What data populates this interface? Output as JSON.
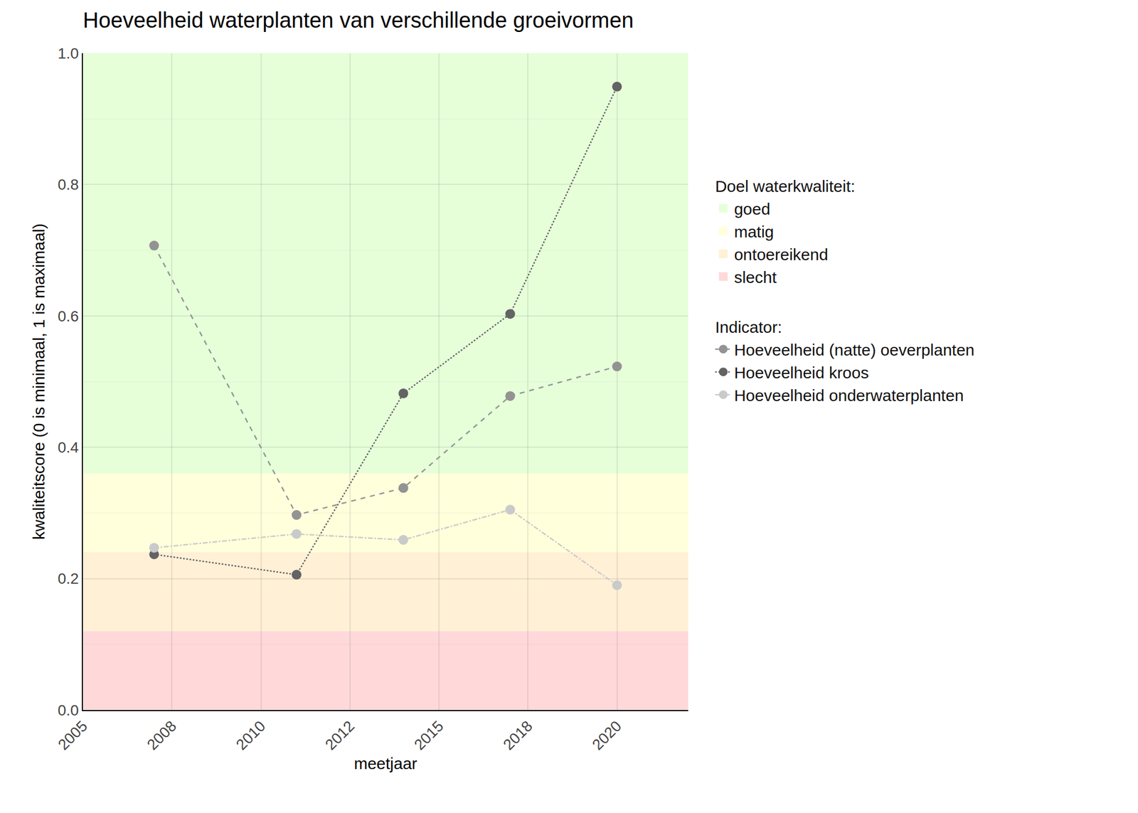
{
  "chart_data": {
    "type": "line",
    "title": "Hoeveelheid waterplanten van verschillende groeivormen",
    "x_label": "meetjaar",
    "y_label": "kwaliteitscore (0 is minimaal, 1 is maximaal)",
    "x": [
      2007,
      2011,
      2014,
      2017,
      2020
    ],
    "xlim": [
      2005,
      2022
    ],
    "xticks": [
      2005,
      {
        "value": 2007.5,
        "label": "2008"
      },
      2010,
      {
        "value": 2012.5,
        "label": "2012"
      },
      2015,
      {
        "value": 2017.5,
        "label": "2018"
      },
      2020
    ],
    "ylim": [
      0,
      1
    ],
    "yticks": [
      {
        "value": 0,
        "label": "0.0"
      },
      0.2,
      0.4,
      0.6,
      0.8,
      {
        "value": 1,
        "label": "1.0"
      }
    ],
    "grid": true,
    "legend": "right",
    "bands_title": "Doel waterkwaliteit:",
    "bands": [
      {
        "name": "goed",
        "from": 0.36,
        "to": 1.0,
        "color": "#e6ffd9"
      },
      {
        "name": "matig",
        "from": 0.24,
        "to": 0.36,
        "color": "#ffffdc"
      },
      {
        "name": "ontoereikend",
        "from": 0.12,
        "to": 0.24,
        "color": "#fff0d6"
      },
      {
        "name": "slecht",
        "from": 0.0,
        "to": 0.12,
        "color": "#ffd9d9"
      }
    ],
    "series_title": "Indicator:",
    "series": [
      {
        "name": "Hoeveelheid (natte) oeverplanten",
        "color": "#939393",
        "line_style": "dash",
        "marker": "circle",
        "values": [
          0.707,
          0.297,
          0.338,
          0.478,
          0.523
        ]
      },
      {
        "name": "Hoeveelheid kroos",
        "color": "#636363",
        "line_style": "dot",
        "marker": "circle",
        "values": [
          0.237,
          0.206,
          0.482,
          0.603,
          0.949
        ]
      },
      {
        "name": "Hoeveelheid onderwaterplanten",
        "color": "#cacaca",
        "line_style": "dashdot",
        "marker": "circle",
        "values": [
          0.247,
          0.268,
          0.259,
          0.305,
          0.19
        ]
      }
    ]
  }
}
